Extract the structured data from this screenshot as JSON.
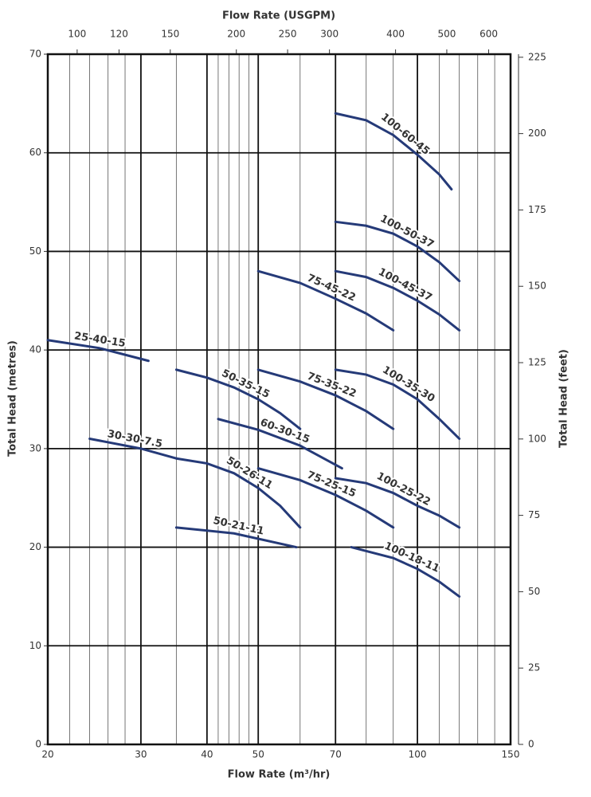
{
  "chart_data": {
    "type": "line",
    "x2label": "Flow Rate (USGPM)",
    "xlabel": "Flow Rate (m³/hr)",
    "ylabel": "Total Head (metres)",
    "y2label": "Total Head (feet)",
    "xscale": "log",
    "xlim": [
      20,
      150
    ],
    "xticks": [
      20,
      30,
      40,
      50,
      70,
      100,
      150
    ],
    "x_minor_grid": [
      22,
      24,
      26,
      28,
      35,
      42,
      44,
      46,
      48,
      60,
      80,
      90,
      110,
      120,
      130,
      140
    ],
    "x2scale": "log",
    "x2lim": [
      88,
      660
    ],
    "x2ticks": [
      100,
      120,
      150,
      200,
      250,
      300,
      400,
      500,
      600
    ],
    "ylim": [
      0,
      70
    ],
    "yticks": [
      0,
      10,
      20,
      30,
      40,
      50,
      60,
      70
    ],
    "y2lim": [
      0,
      226
    ],
    "y2ticks": [
      0,
      25,
      50,
      75,
      100,
      125,
      150,
      175,
      200,
      225
    ],
    "grid": true,
    "color": "#253a78",
    "series": [
      {
        "name": "100-60-45",
        "x": [
          70,
          80,
          90,
          100,
          110,
          116
        ],
        "values": [
          64,
          63.3,
          61.8,
          59.8,
          57.8,
          56.3
        ]
      },
      {
        "name": "100-50-37",
        "x": [
          70,
          80,
          90,
          100,
          110,
          120
        ],
        "values": [
          53,
          52.6,
          51.8,
          50.5,
          48.9,
          47
        ]
      },
      {
        "name": "100-45-37",
        "x": [
          70,
          80,
          90,
          100,
          110,
          120
        ],
        "values": [
          48,
          47.4,
          46.3,
          45,
          43.6,
          42
        ]
      },
      {
        "name": "75-45-22",
        "x": [
          50,
          60,
          70,
          80,
          90
        ],
        "values": [
          48,
          46.8,
          45.2,
          43.7,
          42
        ]
      },
      {
        "name": "25-40-15",
        "x": [
          20,
          25,
          31
        ],
        "values": [
          41,
          40.2,
          38.9
        ]
      },
      {
        "name": "50-35-15",
        "x": [
          35,
          40,
          45,
          50,
          55,
          60
        ],
        "values": [
          38,
          37.2,
          36.2,
          35,
          33.6,
          32
        ]
      },
      {
        "name": "75-35-22",
        "x": [
          50,
          60,
          70,
          80,
          90
        ],
        "values": [
          38,
          36.8,
          35.4,
          33.8,
          32
        ]
      },
      {
        "name": "100-35-30",
        "x": [
          70,
          80,
          90,
          100,
          110,
          120
        ],
        "values": [
          38,
          37.5,
          36.5,
          35,
          33,
          31
        ]
      },
      {
        "name": "60-30-15",
        "x": [
          42,
          50,
          60,
          72
        ],
        "values": [
          33,
          31.9,
          30.3,
          28
        ]
      },
      {
        "name": "30-30-7.5",
        "x": [
          24,
          30,
          35
        ],
        "values": [
          31,
          30,
          29
        ]
      },
      {
        "name": "50-26-11",
        "x": [
          35,
          40,
          45,
          50,
          55,
          60
        ],
        "values": [
          29,
          28.5,
          27.5,
          26,
          24.2,
          22
        ]
      },
      {
        "name": "75-25-15",
        "x": [
          50,
          60,
          70,
          80,
          90
        ],
        "values": [
          28,
          26.8,
          25.3,
          23.7,
          22
        ]
      },
      {
        "name": "100-25-22",
        "x": [
          70,
          80,
          90,
          100,
          110,
          120
        ],
        "values": [
          27,
          26.5,
          25.5,
          24.2,
          23.2,
          22
        ]
      },
      {
        "name": "50-21-11",
        "x": [
          35,
          45,
          59
        ],
        "values": [
          22,
          21.4,
          20
        ]
      },
      {
        "name": "100-18-11",
        "x": [
          75,
          90,
          100,
          110,
          120
        ],
        "values": [
          20,
          18.9,
          17.8,
          16.5,
          15
        ]
      }
    ]
  }
}
